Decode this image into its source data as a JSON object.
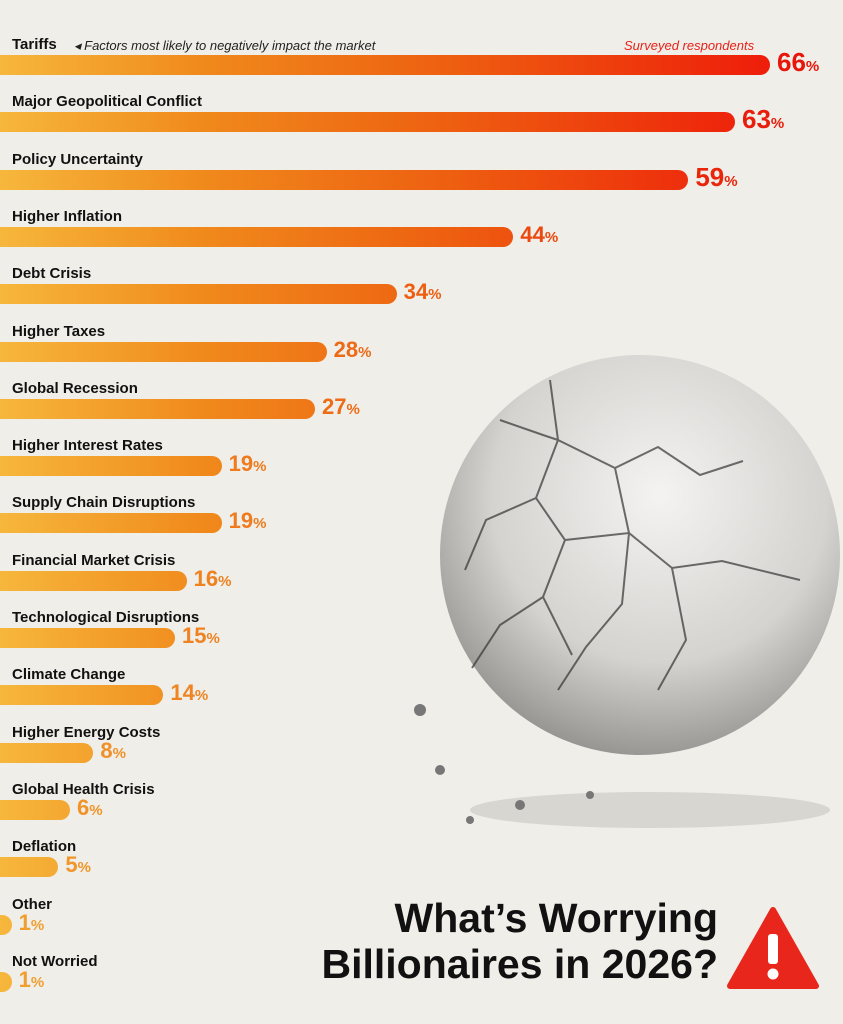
{
  "title_line1": "What’s Worrying",
  "title_line2": "Billionaires in 2026?",
  "warning_icon": "warning-triangle-icon",
  "chart_data": {
    "type": "bar",
    "orientation": "horizontal",
    "subtitle": "Factors most likely to negatively impact the market",
    "legend": "Surveyed respondents",
    "unit": "%",
    "categories": [
      "Tariffs",
      "Major Geopolitical Conflict",
      "Policy Uncertainty",
      "Higher Inflation",
      "Debt Crisis",
      "Higher Taxes",
      "Global Recession",
      "Higher Interest Rates",
      "Supply Chain Disruptions",
      "Financial Market Crisis",
      "Technological Disruptions",
      "Climate Change",
      "Higher Energy Costs",
      "Global Health Crisis",
      "Deflation",
      "Other",
      "Not Worried"
    ],
    "values": [
      66,
      63,
      59,
      44,
      34,
      28,
      27,
      19,
      19,
      16,
      15,
      14,
      8,
      6,
      5,
      1,
      1
    ],
    "colors": {
      "low": "#f6b73c",
      "mid": "#ee5f10",
      "high": "#ee1d0a"
    }
  }
}
